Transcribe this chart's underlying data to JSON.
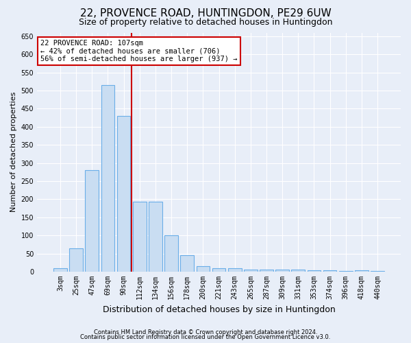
{
  "title": "22, PROVENCE ROAD, HUNTINGDON, PE29 6UW",
  "subtitle": "Size of property relative to detached houses in Huntingdon",
  "xlabel": "Distribution of detached houses by size in Huntingdon",
  "ylabel": "Number of detached properties",
  "categories": [
    "3sqm",
    "25sqm",
    "47sqm",
    "69sqm",
    "90sqm",
    "112sqm",
    "134sqm",
    "156sqm",
    "178sqm",
    "200sqm",
    "221sqm",
    "243sqm",
    "265sqm",
    "287sqm",
    "309sqm",
    "331sqm",
    "353sqm",
    "374sqm",
    "396sqm",
    "418sqm",
    "440sqm"
  ],
  "values": [
    10,
    65,
    280,
    515,
    430,
    193,
    193,
    100,
    45,
    15,
    10,
    10,
    5,
    5,
    5,
    5,
    3,
    3,
    2,
    3,
    2
  ],
  "bar_color": "#c9ddf2",
  "bar_edge_color": "#6aaee8",
  "vline_x": 4.5,
  "vline_color": "#cc0000",
  "annotation_text": "22 PROVENCE ROAD: 107sqm\n← 42% of detached houses are smaller (706)\n56% of semi-detached houses are larger (937) →",
  "annotation_box_color": "#ffffff",
  "annotation_box_edge": "#cc0000",
  "ylim": [
    0,
    660
  ],
  "yticks": [
    0,
    50,
    100,
    150,
    200,
    250,
    300,
    350,
    400,
    450,
    500,
    550,
    600,
    650
  ],
  "footer1": "Contains HM Land Registry data © Crown copyright and database right 2024.",
  "footer2": "Contains public sector information licensed under the Open Government Licence v3.0.",
  "bg_color": "#e8eef8",
  "plot_bg": "#e8eef8",
  "grid_color": "#ffffff",
  "title_fontsize": 11,
  "subtitle_fontsize": 9,
  "tick_fontsize": 7,
  "ylabel_fontsize": 8,
  "xlabel_fontsize": 9
}
